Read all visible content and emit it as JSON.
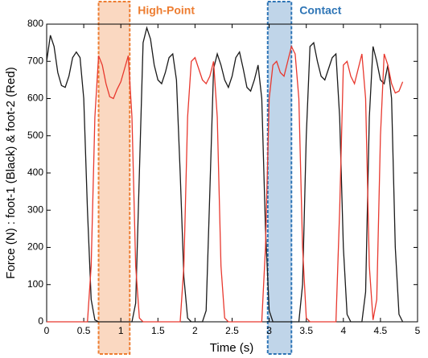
{
  "chart_data": {
    "type": "line",
    "xlabel": "Time (s)",
    "ylabel": "Force (N) : foot-1 (Black) & foot-2 (Red)",
    "x": [
      0,
      0.05,
      0.1,
      0.15,
      0.2,
      0.25,
      0.3,
      0.35,
      0.4,
      0.45,
      0.5,
      0.55,
      0.6,
      0.65,
      0.7,
      0.75,
      0.8,
      0.85,
      0.9,
      0.95,
      1,
      1.05,
      1.1,
      1.15,
      1.2,
      1.25,
      1.3,
      1.35,
      1.4,
      1.45,
      1.5,
      1.55,
      1.6,
      1.65,
      1.7,
      1.75,
      1.8,
      1.85,
      1.9,
      1.95,
      2,
      2.05,
      2.1,
      2.15,
      2.2,
      2.25,
      2.3,
      2.35,
      2.4,
      2.45,
      2.5,
      2.55,
      2.6,
      2.65,
      2.7,
      2.75,
      2.8,
      2.85,
      2.9,
      2.95,
      3,
      3.05,
      3.1,
      3.15,
      3.2,
      3.25,
      3.3,
      3.35,
      3.4,
      3.45,
      3.5,
      3.55,
      3.6,
      3.65,
      3.7,
      3.75,
      3.8,
      3.85,
      3.9,
      3.95,
      4,
      4.05,
      4.1,
      4.15,
      4.2,
      4.25,
      4.3,
      4.35,
      4.4,
      4.45,
      4.5,
      4.55,
      4.6,
      4.65,
      4.7,
      4.75,
      4.8
    ],
    "series": [
      {
        "name": "foot-1",
        "color": "#1a1a1a",
        "values": [
          700,
          770,
          740,
          670,
          635,
          630,
          660,
          710,
          725,
          710,
          600,
          300,
          60,
          5,
          0,
          0,
          0,
          0,
          0,
          0,
          0,
          0,
          0,
          0,
          50,
          400,
          750,
          790,
          760,
          690,
          650,
          640,
          670,
          710,
          720,
          650,
          400,
          120,
          10,
          0,
          0,
          0,
          0,
          30,
          350,
          680,
          720,
          690,
          650,
          630,
          660,
          710,
          725,
          680,
          630,
          620,
          650,
          690,
          600,
          250,
          30,
          0,
          0,
          0,
          0,
          0,
          0,
          0,
          0,
          100,
          500,
          740,
          750,
          700,
          660,
          650,
          680,
          710,
          720,
          550,
          200,
          20,
          0,
          0,
          0,
          0,
          80,
          550,
          740,
          700,
          650,
          640,
          690,
          600,
          200,
          20,
          0
        ]
      },
      {
        "name": "foot-2",
        "color": "#e8382e",
        "values": [
          0,
          0,
          0,
          0,
          0,
          0,
          0,
          0,
          0,
          0,
          0,
          0,
          150,
          550,
          715,
          690,
          640,
          605,
          600,
          625,
          645,
          680,
          715,
          550,
          150,
          10,
          0,
          0,
          0,
          0,
          0,
          0,
          0,
          0,
          0,
          0,
          0,
          150,
          550,
          700,
          710,
          680,
          650,
          640,
          660,
          700,
          550,
          150,
          10,
          0,
          0,
          0,
          0,
          0,
          0,
          0,
          0,
          0,
          0,
          200,
          600,
          690,
          700,
          670,
          660,
          700,
          740,
          720,
          600,
          200,
          10,
          0,
          0,
          0,
          0,
          0,
          0,
          0,
          0,
          300,
          690,
          700,
          660,
          640,
          680,
          720,
          600,
          150,
          5,
          60,
          500,
          720,
          690,
          640,
          615,
          620,
          645
        ]
      }
    ],
    "annotations": [
      {
        "text": "High-Point",
        "x0": 0.7,
        "x1": 1.12,
        "color": "#ed7d31"
      },
      {
        "text": "Contact",
        "x0": 2.98,
        "x1": 3.3,
        "color": "#2e75b6"
      }
    ],
    "xlim": [
      0,
      5
    ],
    "xticks": [
      0,
      0.5,
      1,
      1.5,
      2,
      2.5,
      3,
      3.5,
      4,
      4.5,
      5
    ],
    "ylim": [
      0,
      800
    ],
    "yticks": [
      0,
      100,
      200,
      300,
      400,
      500,
      600,
      700,
      800
    ]
  }
}
